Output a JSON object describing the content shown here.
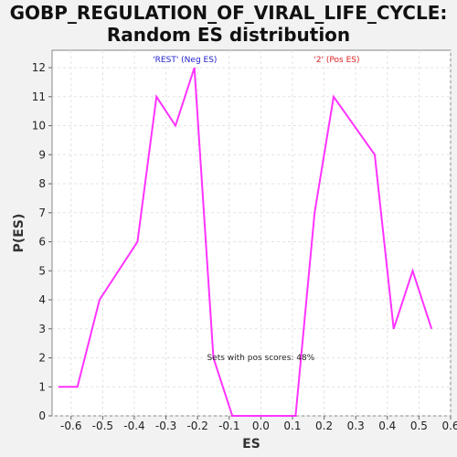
{
  "chart_data": {
    "type": "line",
    "title_line1": "GOBP_REGULATION_OF_VIRAL_LIFE_CYCLE:",
    "title_line2": "Random ES distribution",
    "xlabel": "ES",
    "ylabel": "P(ES)",
    "xlim": [
      -0.66,
      0.6
    ],
    "ylim": [
      0,
      12.6
    ],
    "xticks": [
      -0.6,
      -0.5,
      -0.4,
      -0.3,
      -0.2,
      -0.1,
      0.0,
      0.1,
      0.2,
      0.3,
      0.4,
      0.5,
      0.6
    ],
    "xtick_labels": [
      "-0.6",
      "-0.5",
      "-0.4",
      "-0.3",
      "-0.2",
      "-0.1",
      "0.0",
      "0.1",
      "0.2",
      "0.3",
      "0.4",
      "0.5",
      "0.6"
    ],
    "yticks": [
      0,
      1,
      2,
      3,
      4,
      5,
      6,
      7,
      8,
      9,
      10,
      11,
      12
    ],
    "grid": true,
    "line_color": "#ff33ff",
    "series": [
      {
        "x": [
          -0.64,
          -0.58,
          -0.51,
          -0.39,
          -0.33,
          -0.27,
          -0.21,
          -0.15,
          -0.09,
          0.11,
          0.17,
          0.23,
          0.36,
          0.42,
          0.48,
          0.54
        ],
        "y": [
          1,
          1,
          4,
          6,
          11,
          10,
          12,
          2,
          0,
          0,
          7,
          11,
          9,
          3,
          5,
          3
        ]
      }
    ],
    "annotations": {
      "neg_label": "'REST' (Neg ES)",
      "neg_color": "#2222cc",
      "pos_label": "'2' (Pos ES)",
      "pos_color": "#dd2222",
      "pos_scores": "Sets with pos scores: 48%"
    }
  }
}
